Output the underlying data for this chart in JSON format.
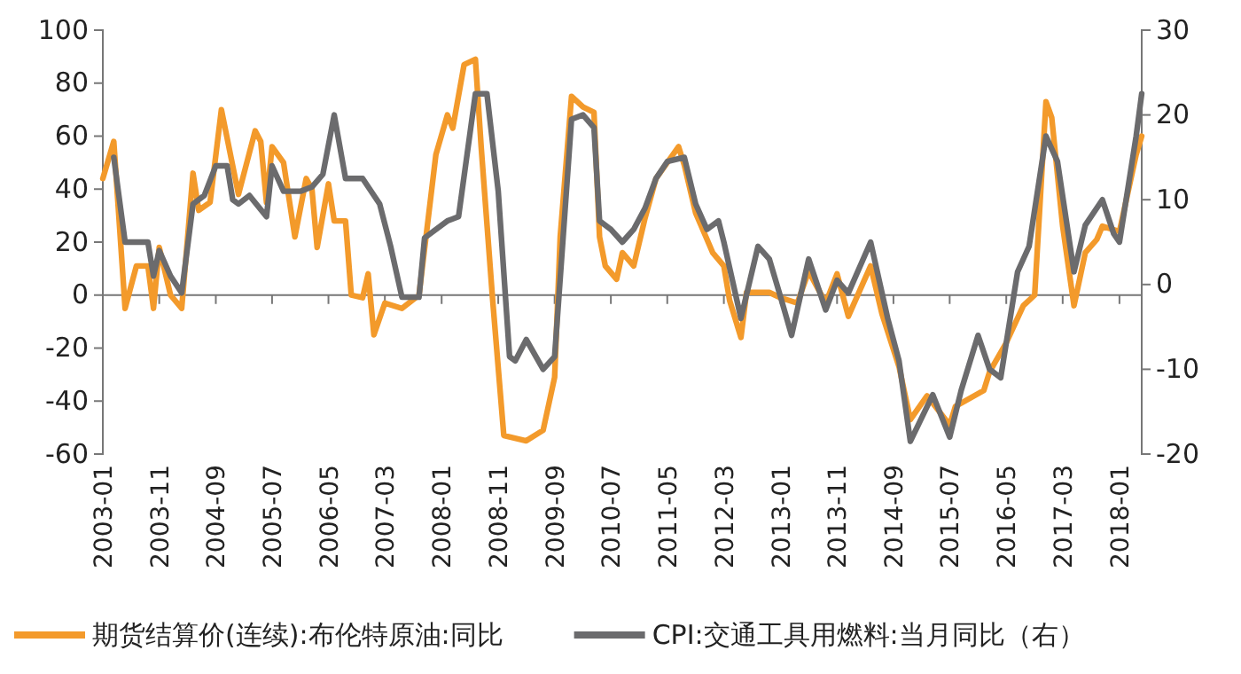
{
  "chart_data": {
    "type": "line",
    "xlim": [
      "2003-01",
      "2018-05"
    ],
    "xticks": [
      "2003-01",
      "2003-11",
      "2004-09",
      "2005-07",
      "2006-05",
      "2007-03",
      "2008-01",
      "2008-11",
      "2009-09",
      "2010-07",
      "2011-05",
      "2012-03",
      "2013-01",
      "2013-11",
      "2014-09",
      "2015-07",
      "2016-05",
      "2017-03",
      "2018-01"
    ],
    "ylim": [
      -60,
      100
    ],
    "yticks": [
      -60,
      -40,
      -20,
      0,
      20,
      40,
      60,
      80,
      100
    ],
    "y2lim": [
      -20,
      30
    ],
    "y2ticks": [
      -20,
      -10,
      0,
      10,
      20,
      30
    ],
    "legend": "bottom",
    "grid": false,
    "series": [
      {
        "name": "期货结算价(连续):布伦特原油:同比",
        "color": "#f39a2b",
        "x": [
          "2003-01",
          "2003-03",
          "2003-05",
          "2003-07",
          "2003-09",
          "2003-10",
          "2003-11",
          "2004-01",
          "2004-03",
          "2004-05",
          "2004-06",
          "2004-08",
          "2004-10",
          "2005-01",
          "2005-04",
          "2005-05",
          "2005-06",
          "2005-07",
          "2005-09",
          "2005-11",
          "2006-01",
          "2006-02",
          "2006-03",
          "2006-05",
          "2006-06",
          "2006-08",
          "2006-09",
          "2006-11",
          "2006-12",
          "2007-01",
          "2007-03",
          "2007-06",
          "2007-09",
          "2007-12",
          "2008-02",
          "2008-03",
          "2008-05",
          "2008-07",
          "2008-08",
          "2008-10",
          "2008-12",
          "2009-04",
          "2009-07",
          "2009-09",
          "2009-10",
          "2009-12",
          "2010-02",
          "2010-04",
          "2010-05",
          "2010-06",
          "2010-08",
          "2010-09",
          "2010-11",
          "2011-01",
          "2011-03",
          "2011-07",
          "2011-08",
          "2011-10",
          "2012-01",
          "2012-03",
          "2012-04",
          "2012-06",
          "2012-07",
          "2012-11",
          "2013-01",
          "2013-04",
          "2013-06",
          "2013-09",
          "2013-11",
          "2014-01",
          "2014-05",
          "2014-07",
          "2014-10",
          "2014-12",
          "2015-03",
          "2015-07",
          "2015-08",
          "2016-01",
          "2016-02",
          "2016-05",
          "2016-08",
          "2016-10",
          "2016-12",
          "2017-01",
          "2017-03",
          "2017-05",
          "2017-07",
          "2017-09",
          "2017-10",
          "2018-01",
          "2018-04",
          "2018-05"
        ],
        "values": [
          44,
          58,
          -5,
          11,
          11,
          -5,
          18,
          0,
          -5,
          46,
          32,
          35,
          70,
          38,
          62,
          58,
          35,
          56,
          50,
          22,
          44,
          40,
          18,
          42,
          28,
          28,
          0,
          -1,
          8,
          -15,
          -3,
          -5,
          0,
          53,
          68,
          63,
          87,
          89,
          56,
          -1,
          -53,
          -55,
          -51,
          -31,
          22,
          75,
          71,
          69,
          22,
          11,
          6,
          16,
          11,
          29,
          44,
          56,
          49,
          31,
          16,
          11,
          -2,
          -16,
          1,
          1,
          -1,
          -3,
          9,
          -3,
          8,
          -8,
          11,
          -7,
          -27,
          -47,
          -38,
          -49,
          -42,
          -36,
          -29,
          -18,
          -4,
          0,
          73,
          67,
          26,
          -4,
          16,
          21,
          26,
          24,
          53,
          60
        ]
      },
      {
        "name": "CPI:交通工具用燃料:当月同比（右）",
        "color": "#6b6b6d",
        "axis": "y2",
        "x": [
          "2003-03",
          "2003-05",
          "2003-07",
          "2003-09",
          "2003-10",
          "2003-11",
          "2004-01",
          "2004-03",
          "2004-05",
          "2004-07",
          "2004-09",
          "2004-11",
          "2004-12",
          "2005-01",
          "2005-03",
          "2005-06",
          "2005-07",
          "2005-09",
          "2005-12",
          "2006-02",
          "2006-04",
          "2006-06",
          "2006-08",
          "2006-11",
          "2007-02",
          "2007-04",
          "2007-06",
          "2007-09",
          "2007-10",
          "2008-02",
          "2008-04",
          "2008-07",
          "2008-09",
          "2008-11",
          "2009-01",
          "2009-02",
          "2009-04",
          "2009-07",
          "2009-09",
          "2009-12",
          "2010-02",
          "2010-04",
          "2010-05",
          "2010-07",
          "2010-09",
          "2010-11",
          "2011-01",
          "2011-03",
          "2011-05",
          "2011-08",
          "2011-10",
          "2011-12",
          "2012-02",
          "2012-03",
          "2012-06",
          "2012-09",
          "2012-11",
          "2013-01",
          "2013-03",
          "2013-06",
          "2013-09",
          "2013-11",
          "2014-01",
          "2014-05",
          "2014-08",
          "2014-10",
          "2014-12",
          "2015-04",
          "2015-07",
          "2015-09",
          "2015-12",
          "2016-02",
          "2016-04",
          "2016-07",
          "2016-09",
          "2016-12",
          "2017-02",
          "2017-05",
          "2017-07",
          "2017-10",
          "2017-12",
          "2018-01",
          "2018-04",
          "2018-05"
        ],
        "values": [
          15,
          5,
          5,
          5,
          1,
          4,
          1,
          -1,
          9.5,
          10.5,
          14,
          14,
          10,
          9.5,
          10.5,
          8,
          14,
          11,
          11,
          11.5,
          13,
          20,
          12.5,
          12.5,
          9.5,
          4.5,
          -1.5,
          -1.5,
          5.5,
          7.5,
          8,
          22.5,
          22.5,
          11,
          -8.5,
          -9,
          -6.5,
          -10,
          -8.5,
          19.5,
          20,
          18.5,
          7.5,
          6.5,
          5,
          6.5,
          9,
          12.5,
          14.5,
          15,
          9.5,
          6.5,
          7.5,
          5,
          -4,
          4.5,
          3,
          -1.5,
          -6,
          3,
          -3,
          0.5,
          -1,
          5,
          -4,
          -9,
          -18.5,
          -13,
          -18,
          -12.5,
          -6,
          -10,
          -11,
          1.5,
          4.5,
          17.5,
          14.5,
          1.5,
          7,
          10,
          6,
          5,
          17.5,
          22.5
        ]
      }
    ]
  }
}
